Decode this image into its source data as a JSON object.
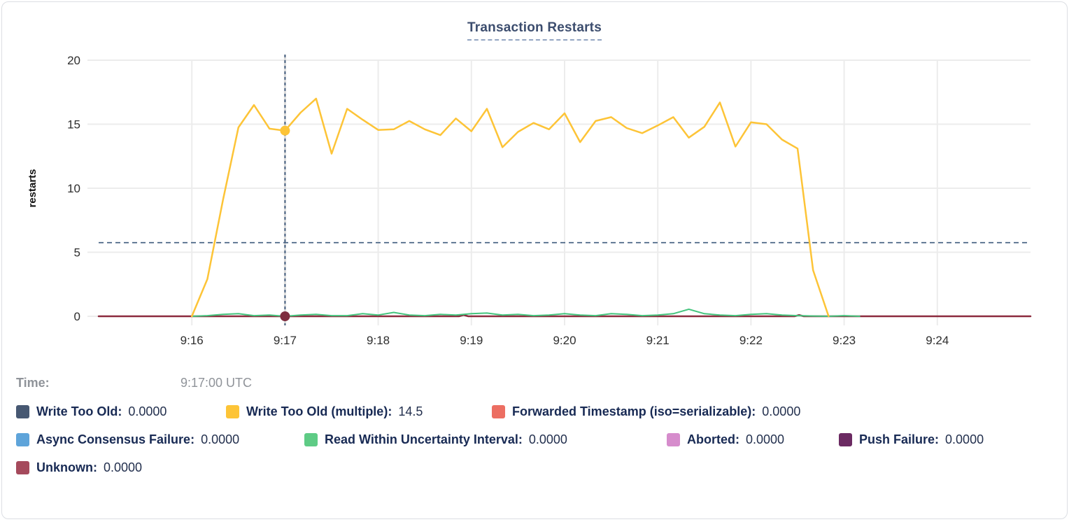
{
  "title": "Transaction Restarts",
  "time_row": {
    "label": "Time:",
    "value": "9:17:00 UTC"
  },
  "legend": {
    "items": [
      {
        "label": "Write Too Old:",
        "value": "0.0000",
        "color": "#475872"
      },
      {
        "label": "Write Too Old (multiple):",
        "value": "14.5",
        "color": "#fdc437"
      },
      {
        "label": "Forwarded Timestamp (iso=serializable):",
        "value": "0.0000",
        "color": "#ec6e62"
      },
      {
        "label": "Async Consensus Failure:",
        "value": "0.0000",
        "color": "#5ea4da"
      },
      {
        "label": "Read Within Uncertainty Interval:",
        "value": "0.0000",
        "color": "#5ecb85"
      },
      {
        "label": "Aborted:",
        "value": "0.0000",
        "color": "#d68ccc"
      },
      {
        "label": "Push Failure:",
        "value": "0.0000",
        "color": "#6b2a62"
      },
      {
        "label": "Unknown:",
        "value": "0.0000",
        "color": "#a54a5c"
      }
    ]
  },
  "chart_data": {
    "type": "line",
    "title": "Transaction Restarts",
    "xlabel": "",
    "ylabel": "restarts",
    "ylim": [
      0,
      20
    ],
    "yticks": [
      0,
      5,
      10,
      15,
      20
    ],
    "x_range_seconds": [
      0,
      600
    ],
    "grid": true,
    "legend_position": "bottom",
    "xticks": [
      {
        "t": 60,
        "label": "9:16"
      },
      {
        "t": 120,
        "label": "9:17"
      },
      {
        "t": 180,
        "label": "9:18"
      },
      {
        "t": 240,
        "label": "9:19"
      },
      {
        "t": 300,
        "label": "9:20"
      },
      {
        "t": 360,
        "label": "9:21"
      },
      {
        "t": 420,
        "label": "9:22"
      },
      {
        "t": 480,
        "label": "9:23"
      },
      {
        "t": 540,
        "label": "9:24"
      }
    ],
    "crosshair": {
      "t": 120,
      "time_label": "9:17:00 UTC",
      "hline_value": 5.75
    },
    "series": [
      {
        "name": "Unknown",
        "color": "#8c2b3e",
        "width": 2.5,
        "points": [
          [
            0,
            0
          ],
          [
            232,
            0
          ],
          [
            235,
            0.1
          ],
          [
            238,
            0
          ],
          [
            448,
            0
          ],
          [
            451,
            0.1
          ],
          [
            454,
            0
          ],
          [
            600,
            0
          ]
        ]
      },
      {
        "name": "Read Within Uncertainty Interval",
        "color": "#44c47d",
        "width": 2,
        "points": [
          [
            60,
            0
          ],
          [
            70,
            0.05
          ],
          [
            80,
            0.15
          ],
          [
            90,
            0.2
          ],
          [
            100,
            0.05
          ],
          [
            110,
            0.1
          ],
          [
            120,
            0
          ],
          [
            130,
            0.1
          ],
          [
            140,
            0.15
          ],
          [
            150,
            0.05
          ],
          [
            160,
            0.05
          ],
          [
            170,
            0.2
          ],
          [
            180,
            0.1
          ],
          [
            190,
            0.3
          ],
          [
            200,
            0.1
          ],
          [
            210,
            0.05
          ],
          [
            220,
            0.15
          ],
          [
            230,
            0.1
          ],
          [
            240,
            0.2
          ],
          [
            250,
            0.25
          ],
          [
            260,
            0.1
          ],
          [
            270,
            0.15
          ],
          [
            280,
            0.05
          ],
          [
            290,
            0.1
          ],
          [
            300,
            0.2
          ],
          [
            310,
            0.1
          ],
          [
            320,
            0.05
          ],
          [
            330,
            0.2
          ],
          [
            340,
            0.15
          ],
          [
            350,
            0.05
          ],
          [
            360,
            0.1
          ],
          [
            370,
            0.2
          ],
          [
            380,
            0.55
          ],
          [
            390,
            0.2
          ],
          [
            400,
            0.1
          ],
          [
            410,
            0.05
          ],
          [
            420,
            0.15
          ],
          [
            430,
            0.2
          ],
          [
            440,
            0.1
          ],
          [
            450,
            0.05
          ],
          [
            460,
            0.02
          ],
          [
            470,
            0
          ],
          [
            480,
            0.05
          ],
          [
            490,
            0
          ]
        ]
      },
      {
        "name": "Write Too Old (multiple)",
        "color": "#fdc437",
        "width": 2.5,
        "points": [
          [
            60,
            0
          ],
          [
            70,
            2.9
          ],
          [
            80,
            9.05
          ],
          [
            90,
            14.75
          ],
          [
            100,
            16.5
          ],
          [
            110,
            14.65
          ],
          [
            120,
            14.5
          ],
          [
            130,
            15.9
          ],
          [
            140,
            17
          ],
          [
            150,
            12.7
          ],
          [
            160,
            16.2
          ],
          [
            170,
            15.35
          ],
          [
            180,
            14.55
          ],
          [
            190,
            14.6
          ],
          [
            200,
            15.25
          ],
          [
            210,
            14.6
          ],
          [
            220,
            14.15
          ],
          [
            230,
            15.45
          ],
          [
            240,
            14.45
          ],
          [
            250,
            16.2
          ],
          [
            260,
            13.2
          ],
          [
            270,
            14.4
          ],
          [
            280,
            15.1
          ],
          [
            290,
            14.6
          ],
          [
            300,
            15.85
          ],
          [
            310,
            13.6
          ],
          [
            320,
            15.25
          ],
          [
            330,
            15.55
          ],
          [
            340,
            14.7
          ],
          [
            350,
            14.3
          ],
          [
            360,
            14.9
          ],
          [
            370,
            15.55
          ],
          [
            380,
            13.95
          ],
          [
            390,
            14.8
          ],
          [
            400,
            16.7
          ],
          [
            410,
            13.25
          ],
          [
            420,
            15.15
          ],
          [
            430,
            15.0
          ],
          [
            440,
            13.8
          ],
          [
            450,
            13.1
          ],
          [
            460,
            3.6
          ],
          [
            470,
            0
          ]
        ]
      }
    ],
    "hover_markers": [
      {
        "series": "Write Too Old (multiple)",
        "t": 120,
        "v": 14.5,
        "color": "#fdc437",
        "r": 7
      },
      {
        "series": "Unknown",
        "t": 120,
        "v": 0,
        "color": "#7e2d3f",
        "r": 7
      }
    ]
  }
}
